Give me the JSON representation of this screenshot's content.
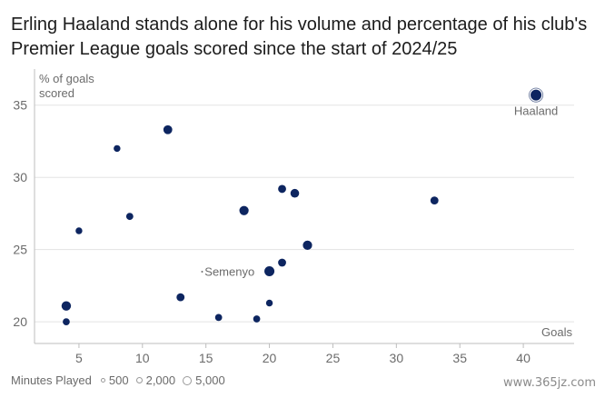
{
  "title": "Erling Haaland stands alone for his volume and percentage of his club's Premier League goals scored since the start of 2024/25",
  "chart_data": {
    "type": "scatter",
    "xlabel": "Goals",
    "ylabel": "% of goals scored",
    "ylabel_lines": [
      "% of goals",
      "scored"
    ],
    "xlim": [
      1.5,
      44
    ],
    "ylim": [
      18.5,
      37.5
    ],
    "xticks": [
      5,
      10,
      15,
      20,
      25,
      30,
      35,
      40
    ],
    "yticks": [
      20,
      25,
      30,
      35
    ],
    "grid": "horizontal",
    "point_color": "#0d2560",
    "points": [
      {
        "x": 41,
        "y": 35.7,
        "minutes": 6000,
        "label": "Haaland"
      },
      {
        "x": 12,
        "y": 33.3,
        "minutes": 3800
      },
      {
        "x": 8,
        "y": 32.0,
        "minutes": 2000
      },
      {
        "x": 21,
        "y": 29.2,
        "minutes": 3000
      },
      {
        "x": 22,
        "y": 28.9,
        "minutes": 3600
      },
      {
        "x": 33,
        "y": 28.4,
        "minutes": 3000
      },
      {
        "x": 18,
        "y": 27.7,
        "minutes": 4200
      },
      {
        "x": 9,
        "y": 27.3,
        "minutes": 2300
      },
      {
        "x": 5,
        "y": 26.3,
        "minutes": 2000
      },
      {
        "x": 23,
        "y": 25.3,
        "minutes": 4200
      },
      {
        "x": 21,
        "y": 24.1,
        "minutes": 3000
      },
      {
        "x": 20,
        "y": 23.5,
        "minutes": 5000,
        "label": "Semenyo"
      },
      {
        "x": 13,
        "y": 21.7,
        "minutes": 3000
      },
      {
        "x": 20,
        "y": 21.3,
        "minutes": 2000
      },
      {
        "x": 4,
        "y": 21.1,
        "minutes": 4400
      },
      {
        "x": 16,
        "y": 20.3,
        "minutes": 2200
      },
      {
        "x": 19,
        "y": 20.2,
        "minutes": 2200
      },
      {
        "x": 4,
        "y": 20.0,
        "minutes": 2200
      }
    ]
  },
  "legend": {
    "title": "Minutes Played",
    "items": [
      {
        "label": "500",
        "value": 500
      },
      {
        "label": "2,000",
        "value": 2000
      },
      {
        "label": "5,000",
        "value": 5000
      }
    ]
  },
  "watermark": "www.365jz.com"
}
